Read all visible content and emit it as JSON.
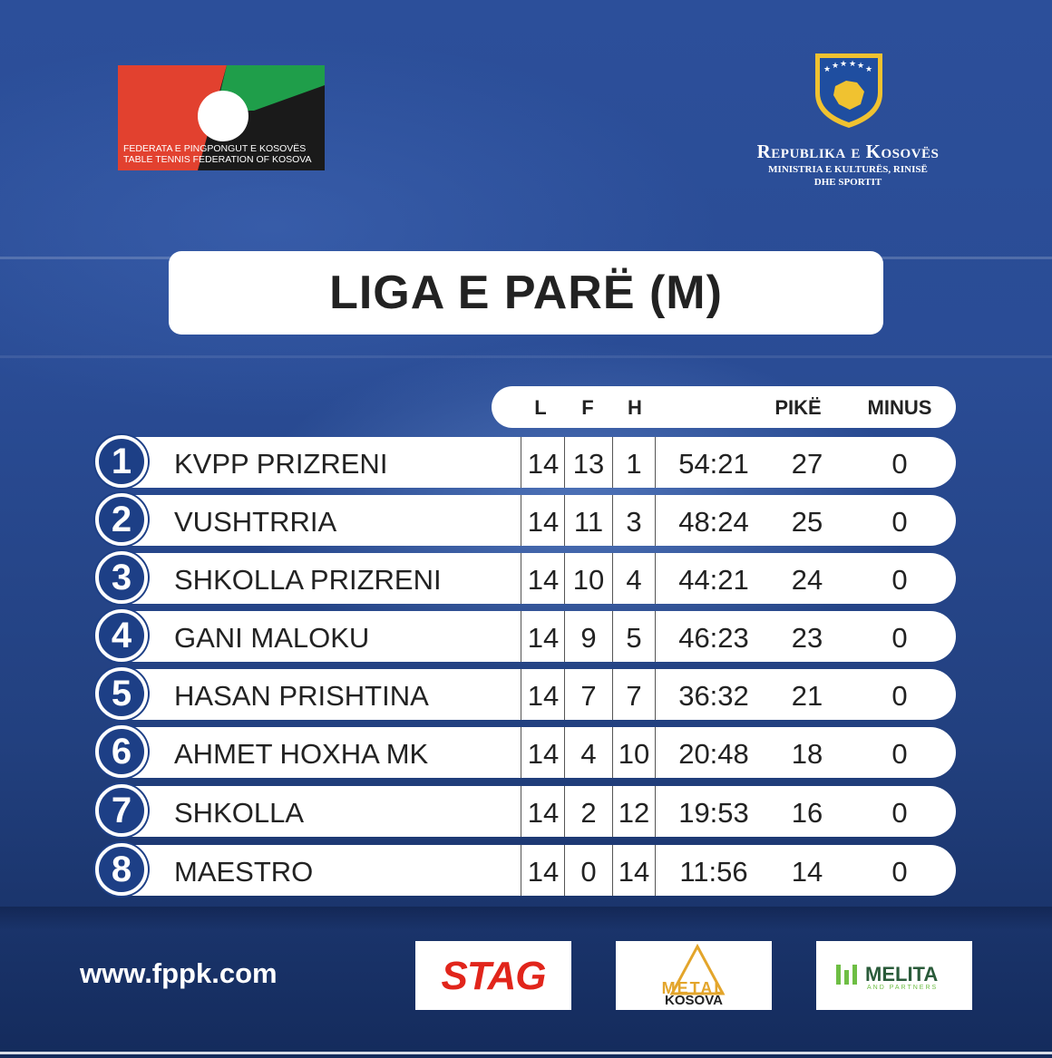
{
  "federation_logo": {
    "line1": "FEDERATA E PINGPONGUT E KOSOVËS",
    "line2": "TABLE TENNIS FEDERATION OF KOSOVA"
  },
  "republic_logo": {
    "title": "Republika e Kosovës",
    "ministry_line1": "MINISTRIA E KULTURËS, RINISË",
    "ministry_line2": "DHE SPORTIT"
  },
  "title": "LIGA E PARË (M)",
  "table": {
    "headers": {
      "l": "L",
      "f": "F",
      "h": "H",
      "pike": "PIKË",
      "minus": "MINUS"
    },
    "rows": [
      {
        "rank": "1",
        "team": "KVPP PRIZRENI",
        "l": "14",
        "f": "13",
        "h": "1",
        "sets": "54:21",
        "pike": "27",
        "minus": "0"
      },
      {
        "rank": "2",
        "team": "VUSHTRRIA",
        "l": "14",
        "f": "11",
        "h": "3",
        "sets": "48:24",
        "pike": "25",
        "minus": "0"
      },
      {
        "rank": "3",
        "team": "SHKOLLA PRIZRENI",
        "l": "14",
        "f": "10",
        "h": "4",
        "sets": "44:21",
        "pike": "24",
        "minus": "0"
      },
      {
        "rank": "4",
        "team": "GANI MALOKU",
        "l": "14",
        "f": "9",
        "h": "5",
        "sets": "46:23",
        "pike": "23",
        "minus": "0"
      },
      {
        "rank": "5",
        "team": "HASAN PRISHTINA",
        "l": "14",
        "f": "7",
        "h": "7",
        "sets": "36:32",
        "pike": "21",
        "minus": "0"
      },
      {
        "rank": "6",
        "team": "AHMET HOXHA MK",
        "l": "14",
        "f": "4",
        "h": "10",
        "sets": "20:48",
        "pike": "18",
        "minus": "0"
      },
      {
        "rank": "7",
        "team": "SHKOLLA",
        "l": "14",
        "f": "2",
        "h": "12",
        "sets": "19:53",
        "pike": "16",
        "minus": "0"
      },
      {
        "rank": "8",
        "team": "MAESTRO",
        "l": "14",
        "f": "0",
        "h": "14",
        "sets": "11:56",
        "pike": "14",
        "minus": "0"
      }
    ]
  },
  "website": "www.fppk.com",
  "sponsors": {
    "stag": "STAG",
    "metal_top": "METAL",
    "metal_bottom": "KOSOVA",
    "melita": "MELITA",
    "melita_sub": "AND PARTNERS"
  },
  "colors": {
    "background": "#2a4c95",
    "badge": "#1d3f86",
    "federation_red": "#e2412f",
    "federation_green": "#1f9e4a",
    "stag_red": "#e1251b",
    "metal_gold": "#e3a52b",
    "melita_green": "#6ebe44"
  }
}
